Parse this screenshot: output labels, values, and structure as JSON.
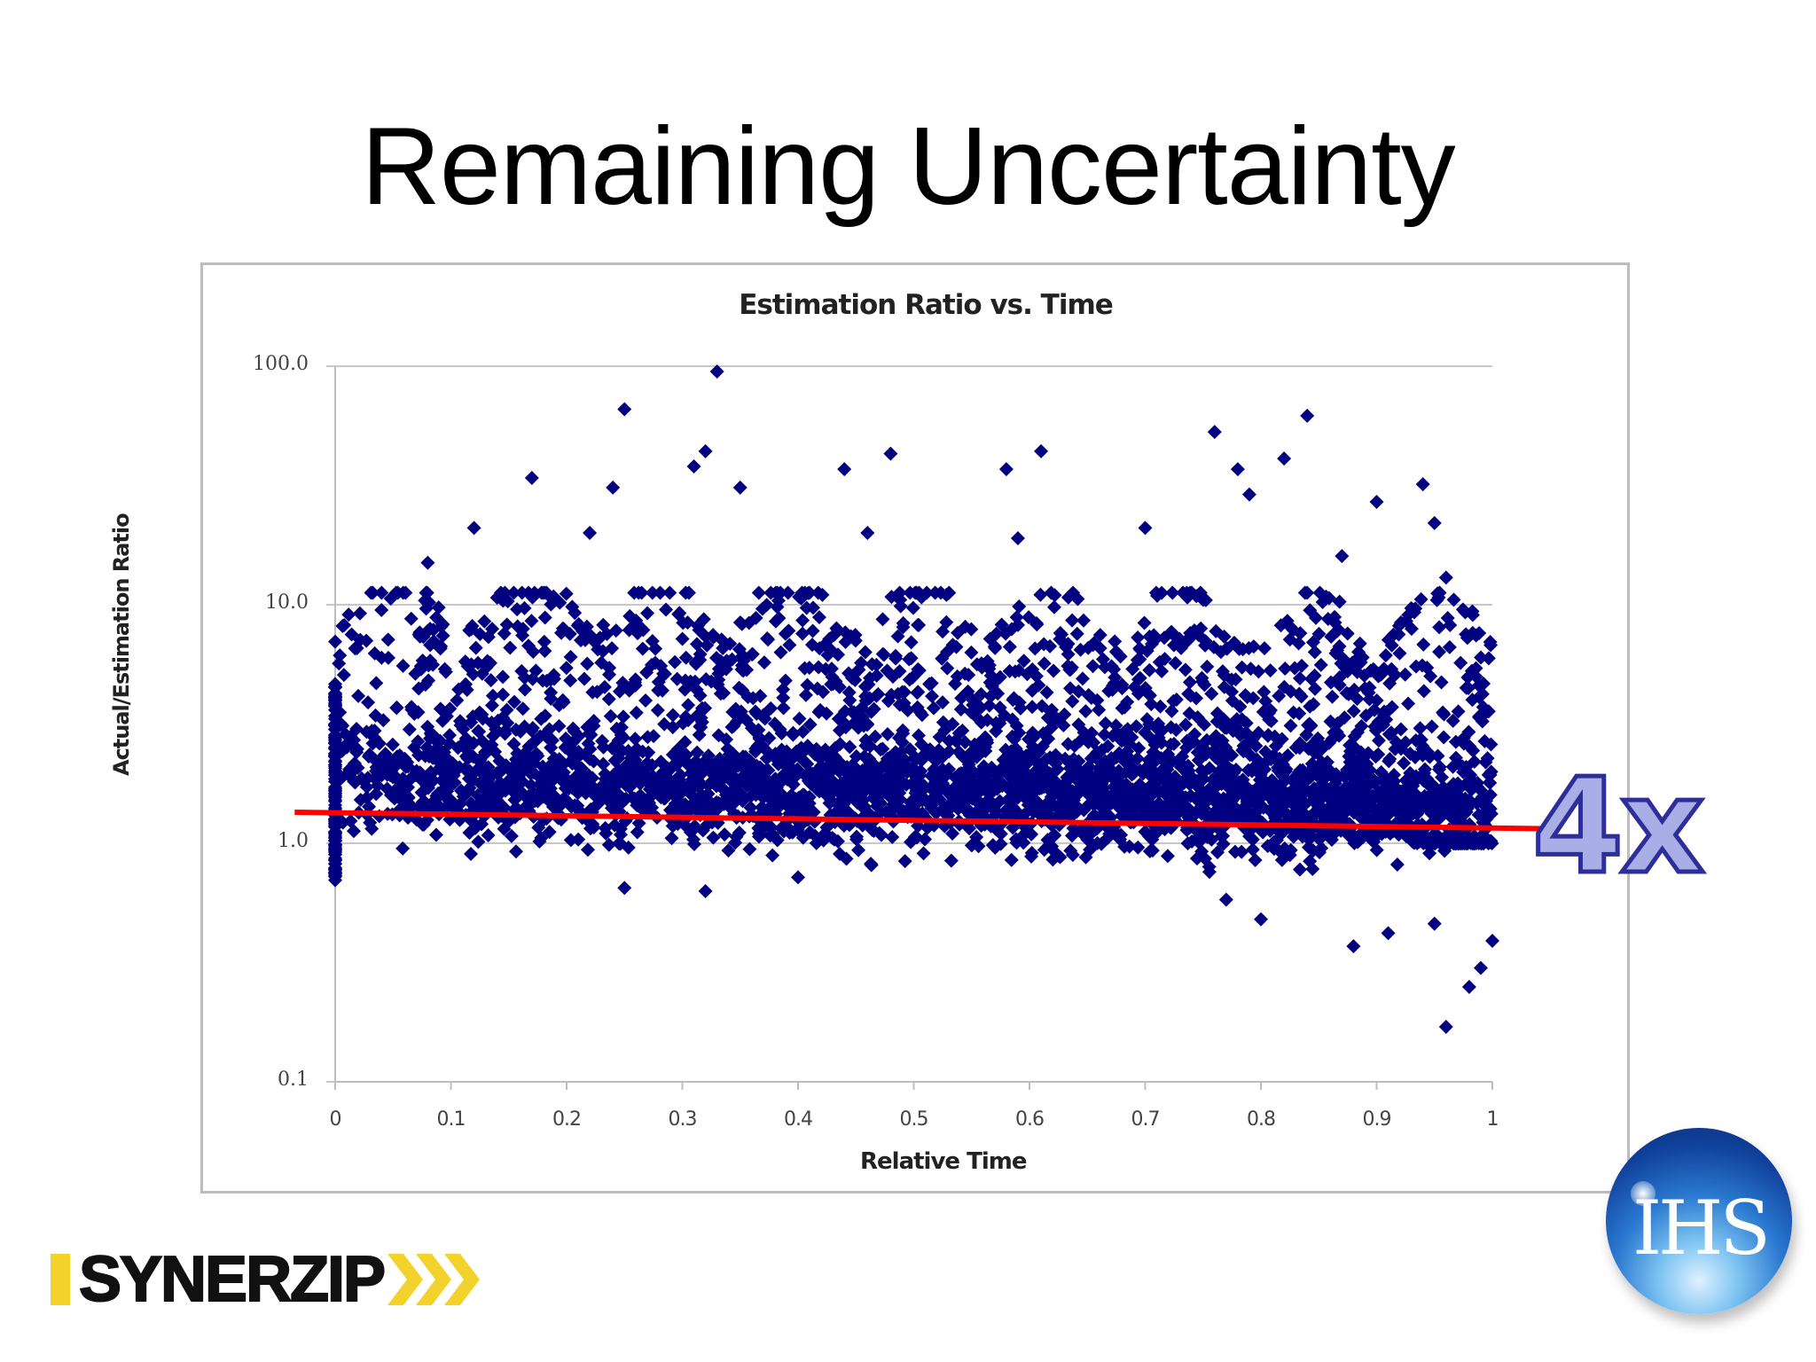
{
  "slide": {
    "title": "Remaining Uncertainty",
    "annotation": "4x",
    "annotation_colors": {
      "fill": "#a9aee6",
      "stroke": "#2e2e9a"
    },
    "trend_line_color": "#ff0000"
  },
  "logos": {
    "left": {
      "text": "SYNERZIP",
      "accent": "#f2d22b"
    },
    "right": {
      "text": "IHS"
    }
  },
  "chart_data": {
    "type": "scatter",
    "title": "Estimation Ratio vs. Time",
    "xlabel": "Relative Time",
    "ylabel": "Actual/Estimation Ratio",
    "x_ticks": [
      "0",
      "0.1",
      "0.2",
      "0.3",
      "0.4",
      "0.5",
      "0.6",
      "0.7",
      "0.8",
      "0.9",
      "1"
    ],
    "y_ticks": [
      "100.0",
      "10.0",
      "1.0",
      "0.1"
    ],
    "xlim": [
      0,
      1
    ],
    "ylim": [
      0.1,
      100
    ],
    "y_scale": "log",
    "grid": {
      "horizontal": true,
      "vertical": false
    },
    "legend": "none",
    "marker": {
      "shape": "diamond",
      "color": "#000080"
    },
    "series": [
      {
        "name": "Estimation Ratio",
        "points_description": "Several thousand points; dense band roughly between 1.0 and 4.0 across all relative times, upper envelope rising in repeated arcs up to ~10; floor at 1.0 near x=1.",
        "notable_points": [
          [
            0.0,
            7.0
          ],
          [
            0.0,
            0.7
          ],
          [
            0.04,
            9.5
          ],
          [
            0.08,
            15.0
          ],
          [
            0.12,
            21.0
          ],
          [
            0.17,
            34.0
          ],
          [
            0.22,
            20.0
          ],
          [
            0.24,
            31.0
          ],
          [
            0.25,
            66.0
          ],
          [
            0.31,
            38.0
          ],
          [
            0.32,
            44.0
          ],
          [
            0.33,
            95.0
          ],
          [
            0.35,
            31.0
          ],
          [
            0.44,
            37.0
          ],
          [
            0.48,
            43.0
          ],
          [
            0.46,
            20.0
          ],
          [
            0.58,
            37.0
          ],
          [
            0.61,
            44.0
          ],
          [
            0.59,
            19.0
          ],
          [
            0.7,
            21.0
          ],
          [
            0.76,
            53.0
          ],
          [
            0.78,
            37.0
          ],
          [
            0.79,
            29.0
          ],
          [
            0.84,
            62.0
          ],
          [
            0.82,
            41.0
          ],
          [
            0.87,
            16.0
          ],
          [
            0.9,
            27.0
          ],
          [
            0.94,
            32.0
          ],
          [
            0.95,
            22.0
          ],
          [
            0.96,
            13.0
          ],
          [
            0.25,
            0.65
          ],
          [
            0.32,
            0.63
          ],
          [
            0.4,
            0.72
          ],
          [
            0.77,
            0.58
          ],
          [
            0.8,
            0.48
          ],
          [
            0.88,
            0.37
          ],
          [
            0.91,
            0.42
          ],
          [
            0.95,
            0.46
          ],
          [
            0.98,
            0.25
          ],
          [
            0.99,
            0.3
          ],
          [
            1.0,
            0.39
          ],
          [
            0.96,
            0.17
          ]
        ]
      }
    ],
    "annotations": [
      {
        "type": "line",
        "color": "#ff0000",
        "from": [
          -0.035,
          1.35
        ],
        "to": [
          1.05,
          1.15
        ],
        "label": "4x"
      }
    ]
  }
}
